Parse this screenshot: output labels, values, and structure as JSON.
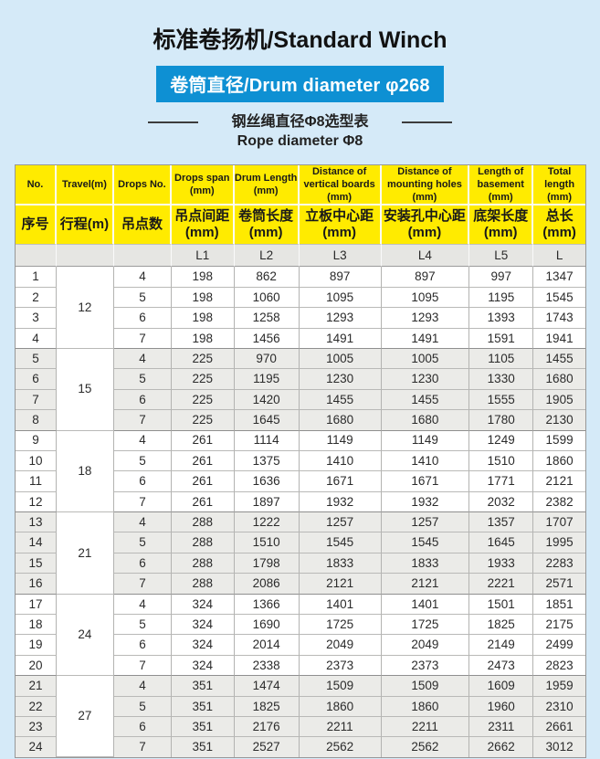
{
  "page": {
    "title": "标准卷扬机/Standard Winch",
    "badge": "卷筒直径/Drum diameter φ268",
    "subtitle_cn": "钢丝绳直径Φ8选型表",
    "subtitle_en": "Rope diameter Φ8"
  },
  "colors": {
    "background": "#d5eaf8",
    "badge_blue": "#0e90d3",
    "header_yellow": "#ffeb00",
    "shaded_row": "#ebebe8",
    "symbol_row_gray": "#e6e6e3"
  },
  "table": {
    "columns": [
      {
        "en": "No.",
        "cn": "序号",
        "sym": ""
      },
      {
        "en": "Travel(m)",
        "cn": "行程(m)",
        "sym": ""
      },
      {
        "en": "Drops No.",
        "cn": "吊点数",
        "sym": ""
      },
      {
        "en": "Drops span\n(mm)",
        "cn": "吊点间距\n(mm)",
        "sym": "L1"
      },
      {
        "en": "Drum Length\n(mm)",
        "cn": "卷筒长度\n(mm)",
        "sym": "L2"
      },
      {
        "en": "Distance of\nvertical boards\n(mm)",
        "cn": "立板中心距\n(mm)",
        "sym": "L3"
      },
      {
        "en": "Distance of\nmounting holes\n(mm)",
        "cn": "安装孔中心距\n(mm)",
        "sym": "L4"
      },
      {
        "en": "Length of\nbasement\n(mm)",
        "cn": "底架长度\n(mm)",
        "sym": "L5"
      },
      {
        "en": "Total\nlength\n(mm)",
        "cn": "总长\n(mm)",
        "sym": "L"
      }
    ],
    "groups": [
      {
        "travel": "12",
        "shaded": false,
        "rows": [
          [
            1,
            4,
            198,
            862,
            897,
            897,
            997,
            1347
          ],
          [
            2,
            5,
            198,
            1060,
            1095,
            1095,
            1195,
            1545
          ],
          [
            3,
            6,
            198,
            1258,
            1293,
            1293,
            1393,
            1743
          ],
          [
            4,
            7,
            198,
            1456,
            1491,
            1491,
            1591,
            1941
          ]
        ]
      },
      {
        "travel": "15",
        "shaded": true,
        "rows": [
          [
            5,
            4,
            225,
            970,
            1005,
            1005,
            1105,
            1455
          ],
          [
            6,
            5,
            225,
            1195,
            1230,
            1230,
            1330,
            1680
          ],
          [
            7,
            6,
            225,
            1420,
            1455,
            1455,
            1555,
            1905
          ],
          [
            8,
            7,
            225,
            1645,
            1680,
            1680,
            1780,
            2130
          ]
        ]
      },
      {
        "travel": "18",
        "shaded": false,
        "rows": [
          [
            9,
            4,
            261,
            1114,
            1149,
            1149,
            1249,
            1599
          ],
          [
            10,
            5,
            261,
            1375,
            1410,
            1410,
            1510,
            1860
          ],
          [
            11,
            6,
            261,
            1636,
            1671,
            1671,
            1771,
            2121
          ],
          [
            12,
            7,
            261,
            1897,
            1932,
            1932,
            2032,
            2382
          ]
        ]
      },
      {
        "travel": "21",
        "shaded": true,
        "rows": [
          [
            13,
            4,
            288,
            1222,
            1257,
            1257,
            1357,
            1707
          ],
          [
            14,
            5,
            288,
            1510,
            1545,
            1545,
            1645,
            1995
          ],
          [
            15,
            6,
            288,
            1798,
            1833,
            1833,
            1933,
            2283
          ],
          [
            16,
            7,
            288,
            2086,
            2121,
            2121,
            2221,
            2571
          ]
        ]
      },
      {
        "travel": "24",
        "shaded": false,
        "rows": [
          [
            17,
            4,
            324,
            1366,
            1401,
            1401,
            1501,
            1851
          ],
          [
            18,
            5,
            324,
            1690,
            1725,
            1725,
            1825,
            2175
          ],
          [
            19,
            6,
            324,
            2014,
            2049,
            2049,
            2149,
            2499
          ],
          [
            20,
            7,
            324,
            2338,
            2373,
            2373,
            2473,
            2823
          ]
        ]
      },
      {
        "travel": "27",
        "shaded": true,
        "rows": [
          [
            21,
            4,
            351,
            1474,
            1509,
            1509,
            1609,
            1959
          ],
          [
            22,
            5,
            351,
            1825,
            1860,
            1860,
            1960,
            2310
          ],
          [
            23,
            6,
            351,
            2176,
            2211,
            2211,
            2311,
            2661
          ],
          [
            24,
            7,
            351,
            2527,
            2562,
            2562,
            2662,
            3012
          ]
        ]
      }
    ]
  }
}
